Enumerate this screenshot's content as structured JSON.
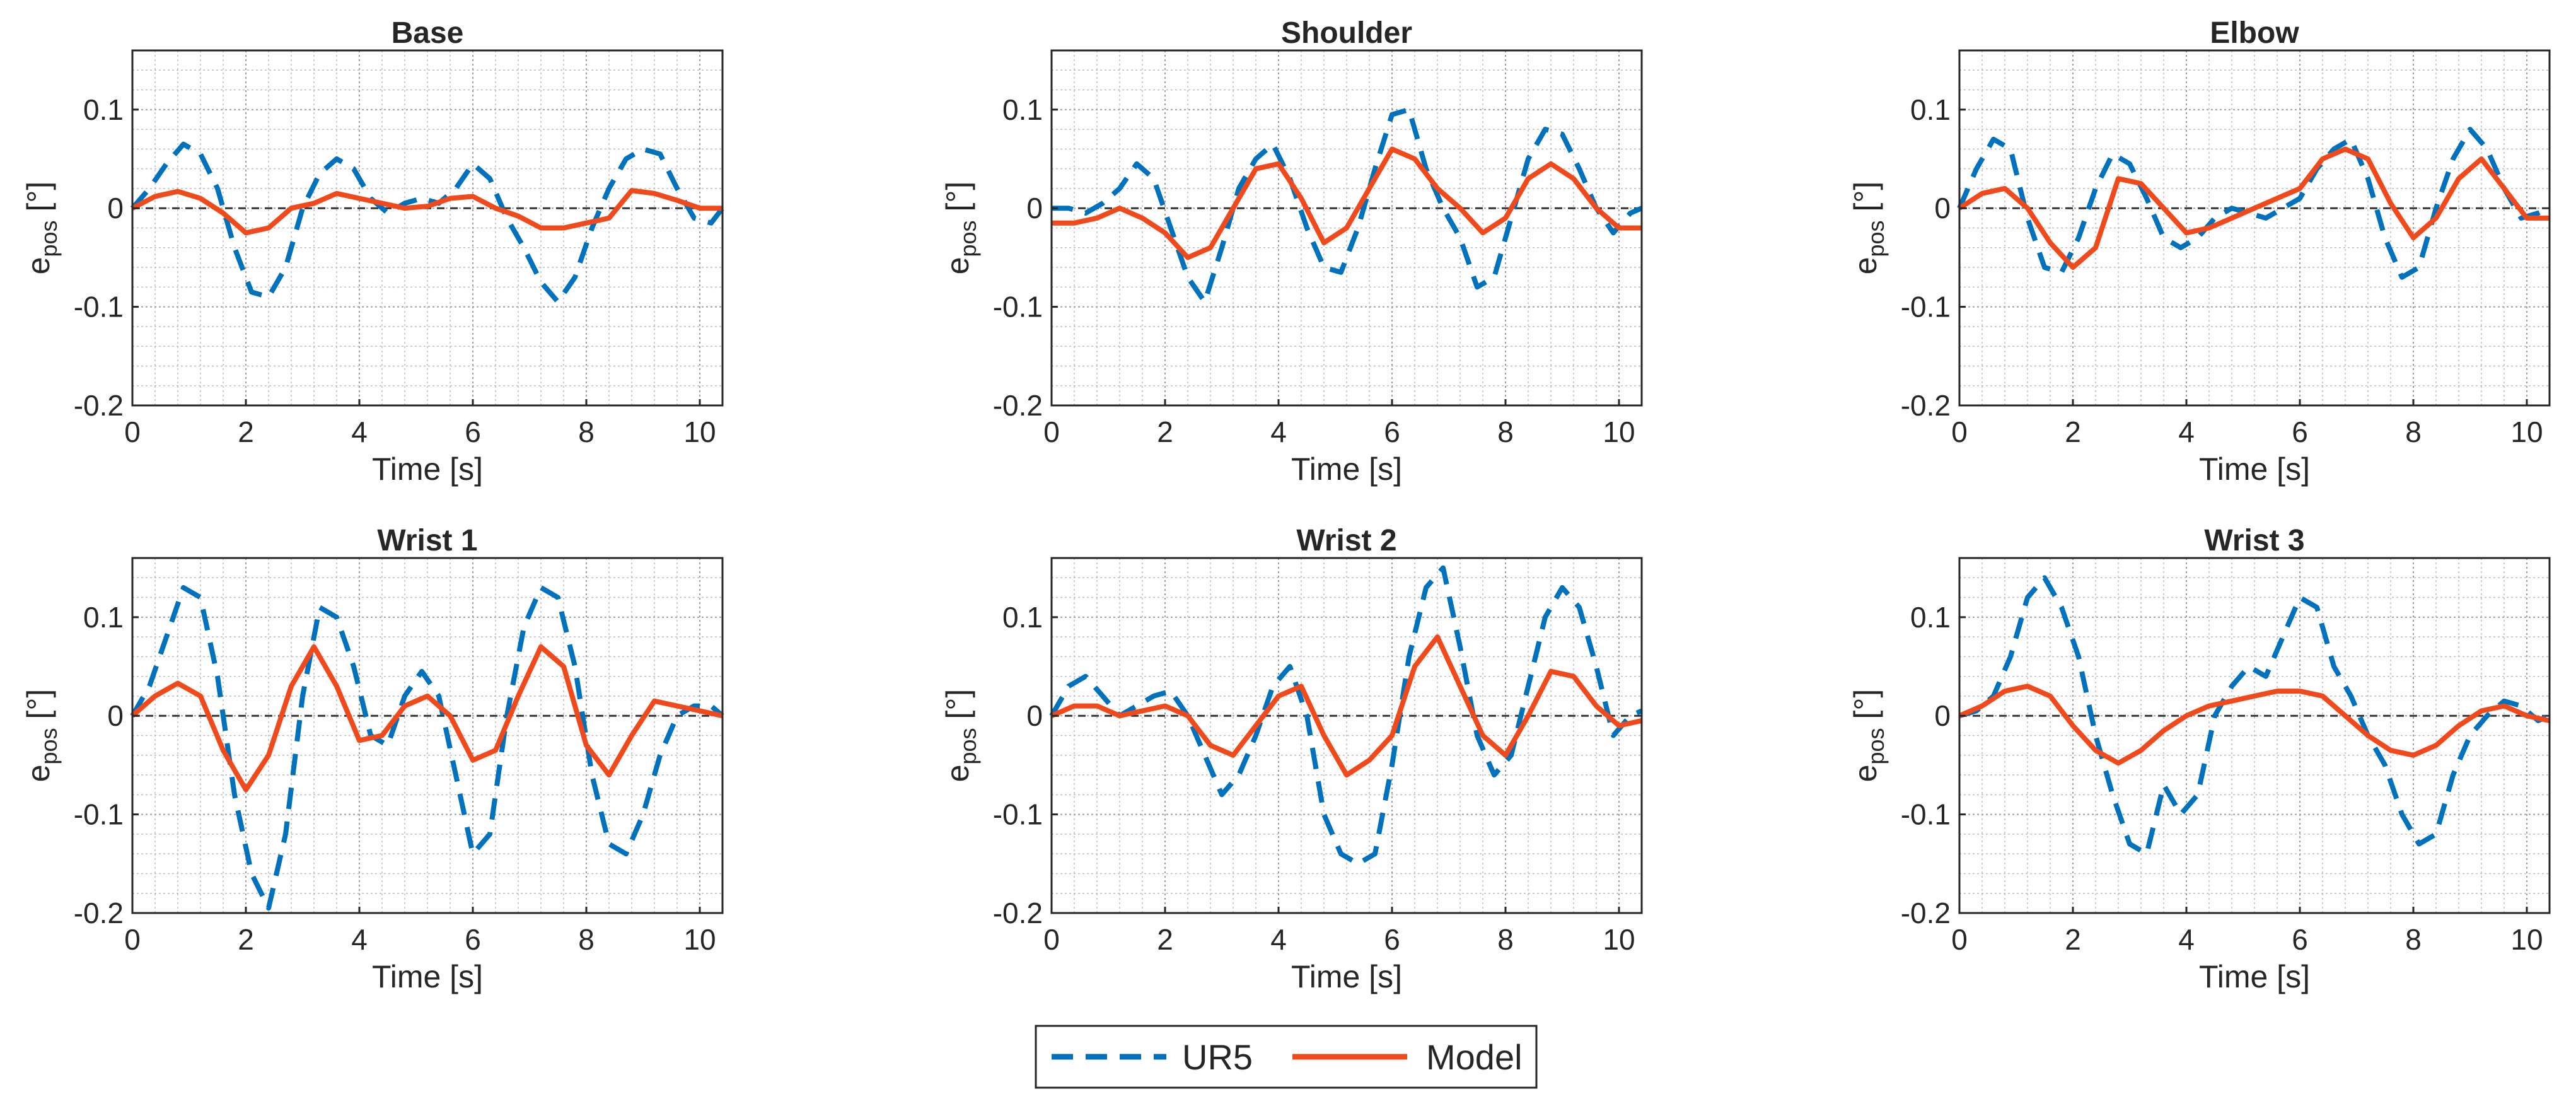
{
  "figure": {
    "legend_placement": "bottom-center",
    "legend": [
      {
        "name": "UR5",
        "style": "dashed",
        "color": "#0072BD"
      },
      {
        "name": "Model",
        "style": "solid",
        "color": "#F04A1C"
      }
    ],
    "y_axis_label_main": "e",
    "y_axis_label_sub": "pos",
    "y_axis_label_unit": "[°]"
  },
  "chart_data": [
    {
      "type": "line",
      "title": "Base",
      "xlabel": "Time [s]",
      "ylabel": "e_pos [°]",
      "xlim": [
        0,
        10.4
      ],
      "ylim": [
        -0.2,
        0.16
      ],
      "grid": true,
      "xticks": [
        "0",
        "2",
        "4",
        "6",
        "8",
        "10"
      ],
      "yticks": [
        "-0.2",
        "-0.1",
        "0",
        "0.1"
      ],
      "series": [
        {
          "name": "UR5",
          "x": [
            0,
            0.3,
            0.6,
            0.9,
            1.2,
            1.5,
            1.8,
            2.1,
            2.4,
            2.7,
            3.0,
            3.3,
            3.6,
            3.9,
            4.2,
            4.5,
            4.8,
            5.1,
            5.4,
            5.7,
            6.0,
            6.3,
            6.6,
            6.9,
            7.2,
            7.5,
            7.8,
            8.1,
            8.4,
            8.7,
            9.0,
            9.3,
            9.6,
            9.9,
            10.2,
            10.4
          ],
          "y": [
            0,
            0.02,
            0.045,
            0.065,
            0.055,
            0.02,
            -0.04,
            -0.085,
            -0.09,
            -0.06,
            0.0,
            0.035,
            0.05,
            0.04,
            0.01,
            -0.005,
            0.005,
            0.01,
            0.005,
            0.02,
            0.045,
            0.03,
            -0.01,
            -0.04,
            -0.075,
            -0.095,
            -0.07,
            -0.02,
            0.02,
            0.05,
            0.06,
            0.055,
            0.02,
            -0.01,
            -0.015,
            0.0
          ]
        },
        {
          "name": "Model",
          "x": [
            0,
            0.4,
            0.8,
            1.2,
            1.6,
            2.0,
            2.4,
            2.8,
            3.2,
            3.6,
            4.0,
            4.4,
            4.8,
            5.2,
            5.6,
            6.0,
            6.4,
            6.8,
            7.2,
            7.6,
            8.0,
            8.4,
            8.8,
            9.2,
            9.6,
            10.0,
            10.4
          ],
          "y": [
            0,
            0.012,
            0.017,
            0.01,
            -0.005,
            -0.025,
            -0.02,
            0.0,
            0.005,
            0.015,
            0.01,
            0.005,
            0.0,
            0.002,
            0.01,
            0.012,
            0.0,
            -0.008,
            -0.02,
            -0.02,
            -0.015,
            -0.01,
            0.018,
            0.015,
            0.008,
            0.0,
            0.0
          ]
        }
      ]
    },
    {
      "type": "line",
      "title": "Shoulder",
      "xlabel": "Time [s]",
      "ylabel": "e_pos [°]",
      "xlim": [
        0,
        10.4
      ],
      "ylim": [
        -0.2,
        0.16
      ],
      "grid": true,
      "xticks": [
        "0",
        "2",
        "4",
        "6",
        "8",
        "10"
      ],
      "yticks": [
        "-0.2",
        "-0.1",
        "0",
        "0.1"
      ],
      "series": [
        {
          "name": "UR5",
          "x": [
            0,
            0.3,
            0.6,
            0.9,
            1.2,
            1.5,
            1.8,
            2.1,
            2.4,
            2.7,
            3.0,
            3.3,
            3.6,
            3.9,
            4.2,
            4.5,
            4.8,
            5.1,
            5.4,
            5.7,
            6.0,
            6.3,
            6.6,
            6.9,
            7.2,
            7.5,
            7.8,
            8.1,
            8.4,
            8.7,
            9.0,
            9.3,
            9.6,
            9.9,
            10.2,
            10.4
          ],
          "y": [
            0,
            0.0,
            -0.005,
            0.005,
            0.02,
            0.045,
            0.03,
            -0.02,
            -0.07,
            -0.095,
            -0.04,
            0.02,
            0.05,
            0.065,
            0.03,
            -0.02,
            -0.06,
            -0.065,
            -0.02,
            0.04,
            0.095,
            0.1,
            0.04,
            0.0,
            -0.03,
            -0.08,
            -0.07,
            -0.01,
            0.05,
            0.08,
            0.075,
            0.04,
            0.0,
            -0.025,
            -0.005,
            0.0
          ]
        },
        {
          "name": "Model",
          "x": [
            0,
            0.4,
            0.8,
            1.2,
            1.6,
            2.0,
            2.4,
            2.8,
            3.2,
            3.6,
            4.0,
            4.4,
            4.8,
            5.2,
            5.6,
            6.0,
            6.4,
            6.8,
            7.2,
            7.6,
            8.0,
            8.4,
            8.8,
            9.2,
            9.6,
            10.0,
            10.4
          ],
          "y": [
            -0.015,
            -0.015,
            -0.01,
            0.0,
            -0.01,
            -0.025,
            -0.05,
            -0.04,
            0.0,
            0.04,
            0.045,
            0.01,
            -0.035,
            -0.02,
            0.02,
            0.06,
            0.05,
            0.02,
            0.0,
            -0.025,
            -0.01,
            0.03,
            0.045,
            0.03,
            0.0,
            -0.02,
            -0.02
          ]
        }
      ]
    },
    {
      "type": "line",
      "title": "Elbow",
      "xlabel": "Time [s]",
      "ylabel": "e_pos [°]",
      "xlim": [
        0,
        10.4
      ],
      "ylim": [
        -0.2,
        0.16
      ],
      "grid": true,
      "xticks": [
        "0",
        "2",
        "4",
        "6",
        "8",
        "10"
      ],
      "yticks": [
        "-0.2",
        "-0.1",
        "0",
        "0.1"
      ],
      "series": [
        {
          "name": "UR5",
          "x": [
            0,
            0.3,
            0.6,
            0.9,
            1.2,
            1.5,
            1.8,
            2.1,
            2.4,
            2.7,
            3.0,
            3.3,
            3.6,
            3.9,
            4.2,
            4.5,
            4.8,
            5.1,
            5.4,
            5.7,
            6.0,
            6.3,
            6.6,
            6.9,
            7.2,
            7.5,
            7.8,
            8.1,
            8.4,
            8.7,
            9.0,
            9.3,
            9.6,
            9.9,
            10.2,
            10.4
          ],
          "y": [
            0,
            0.04,
            0.07,
            0.06,
            -0.01,
            -0.06,
            -0.065,
            -0.03,
            0.02,
            0.055,
            0.045,
            0.01,
            -0.03,
            -0.04,
            -0.03,
            -0.01,
            0.0,
            -0.005,
            -0.01,
            0.0,
            0.01,
            0.04,
            0.06,
            0.07,
            0.03,
            -0.03,
            -0.07,
            -0.06,
            0.0,
            0.05,
            0.08,
            0.06,
            0.02,
            -0.01,
            -0.005,
            0.0
          ]
        },
        {
          "name": "Model",
          "x": [
            0,
            0.4,
            0.8,
            1.2,
            1.6,
            2.0,
            2.4,
            2.8,
            3.2,
            3.6,
            4.0,
            4.4,
            4.8,
            5.2,
            5.6,
            6.0,
            6.4,
            6.8,
            7.2,
            7.6,
            8.0,
            8.4,
            8.8,
            9.2,
            9.6,
            10.0,
            10.4
          ],
          "y": [
            0,
            0.015,
            0.02,
            0.0,
            -0.035,
            -0.06,
            -0.04,
            0.03,
            0.025,
            0.0,
            -0.025,
            -0.02,
            -0.01,
            0.0,
            0.01,
            0.02,
            0.05,
            0.06,
            0.05,
            0.005,
            -0.03,
            -0.01,
            0.03,
            0.05,
            0.02,
            -0.01,
            -0.01
          ]
        }
      ]
    },
    {
      "type": "line",
      "title": "Wrist 1",
      "xlabel": "Time [s]",
      "ylabel": "e_pos [°]",
      "xlim": [
        0,
        10.4
      ],
      "ylim": [
        -0.2,
        0.16
      ],
      "grid": true,
      "xticks": [
        "0",
        "2",
        "4",
        "6",
        "8",
        "10"
      ],
      "yticks": [
        "-0.2",
        "-0.1",
        "0",
        "0.1"
      ],
      "series": [
        {
          "name": "UR5",
          "x": [
            0,
            0.3,
            0.6,
            0.9,
            1.2,
            1.5,
            1.8,
            2.1,
            2.4,
            2.7,
            3.0,
            3.3,
            3.6,
            3.9,
            4.2,
            4.5,
            4.8,
            5.1,
            5.4,
            5.7,
            6.0,
            6.3,
            6.6,
            6.9,
            7.2,
            7.5,
            7.8,
            8.1,
            8.4,
            8.7,
            9.0,
            9.3,
            9.6,
            9.9,
            10.2,
            10.4
          ],
          "y": [
            0,
            0.03,
            0.08,
            0.13,
            0.12,
            0.04,
            -0.08,
            -0.16,
            -0.195,
            -0.12,
            0.02,
            0.11,
            0.1,
            0.05,
            -0.02,
            -0.03,
            0.02,
            0.045,
            0.02,
            -0.06,
            -0.14,
            -0.12,
            0.0,
            0.09,
            0.13,
            0.12,
            0.05,
            -0.06,
            -0.13,
            -0.14,
            -0.1,
            -0.04,
            0.0,
            0.01,
            0.01,
            0.0
          ]
        },
        {
          "name": "Model",
          "x": [
            0,
            0.4,
            0.8,
            1.2,
            1.6,
            2.0,
            2.4,
            2.8,
            3.2,
            3.6,
            4.0,
            4.4,
            4.8,
            5.2,
            5.6,
            6.0,
            6.4,
            6.8,
            7.2,
            7.6,
            8.0,
            8.4,
            8.8,
            9.2,
            9.6,
            10.0,
            10.4
          ],
          "y": [
            0,
            0.02,
            0.033,
            0.02,
            -0.035,
            -0.075,
            -0.04,
            0.03,
            0.07,
            0.03,
            -0.025,
            -0.02,
            0.01,
            0.02,
            0.0,
            -0.045,
            -0.035,
            0.02,
            0.07,
            0.05,
            -0.03,
            -0.06,
            -0.02,
            0.015,
            0.01,
            0.005,
            0.0
          ]
        }
      ]
    },
    {
      "type": "line",
      "title": "Wrist 2",
      "xlabel": "Time [s]",
      "ylabel": "e_pos [°]",
      "xlim": [
        0,
        10.4
      ],
      "ylim": [
        -0.2,
        0.16
      ],
      "grid": true,
      "xticks": [
        "0",
        "2",
        "4",
        "6",
        "8",
        "10"
      ],
      "yticks": [
        "-0.2",
        "-0.1",
        "0",
        "0.1"
      ],
      "series": [
        {
          "name": "UR5",
          "x": [
            0,
            0.3,
            0.6,
            0.9,
            1.2,
            1.5,
            1.8,
            2.1,
            2.4,
            2.7,
            3.0,
            3.3,
            3.6,
            3.9,
            4.2,
            4.5,
            4.8,
            5.1,
            5.4,
            5.7,
            6.0,
            6.3,
            6.6,
            6.9,
            7.2,
            7.5,
            7.8,
            8.1,
            8.4,
            8.7,
            9.0,
            9.3,
            9.6,
            9.9,
            10.2,
            10.4
          ],
          "y": [
            0,
            0.03,
            0.04,
            0.02,
            0.0,
            0.01,
            0.02,
            0.025,
            0.0,
            -0.04,
            -0.08,
            -0.06,
            -0.02,
            0.03,
            0.05,
            0.0,
            -0.1,
            -0.14,
            -0.15,
            -0.14,
            -0.05,
            0.06,
            0.13,
            0.15,
            0.07,
            -0.02,
            -0.06,
            -0.04,
            0.03,
            0.1,
            0.13,
            0.11,
            0.05,
            -0.02,
            0.0,
            0.005
          ]
        },
        {
          "name": "Model",
          "x": [
            0,
            0.4,
            0.8,
            1.2,
            1.6,
            2.0,
            2.4,
            2.8,
            3.2,
            3.6,
            4.0,
            4.4,
            4.8,
            5.2,
            5.6,
            6.0,
            6.4,
            6.8,
            7.2,
            7.6,
            8.0,
            8.4,
            8.8,
            9.2,
            9.6,
            10.0,
            10.4
          ],
          "y": [
            0,
            0.01,
            0.01,
            0.0,
            0.005,
            0.01,
            0.0,
            -0.03,
            -0.04,
            -0.01,
            0.02,
            0.03,
            -0.02,
            -0.06,
            -0.045,
            -0.02,
            0.05,
            0.08,
            0.03,
            -0.02,
            -0.04,
            0.0,
            0.045,
            0.04,
            0.01,
            -0.01,
            -0.005
          ]
        }
      ]
    },
    {
      "type": "line",
      "title": "Wrist 3",
      "xlabel": "Time [s]",
      "ylabel": "e_pos [°]",
      "xlim": [
        0,
        10.4
      ],
      "ylim": [
        -0.2,
        0.16
      ],
      "grid": true,
      "xticks": [
        "0",
        "2",
        "4",
        "6",
        "8",
        "10"
      ],
      "yticks": [
        "-0.2",
        "-0.1",
        "0",
        "0.1"
      ],
      "series": [
        {
          "name": "UR5",
          "x": [
            0,
            0.3,
            0.6,
            0.9,
            1.2,
            1.5,
            1.8,
            2.1,
            2.4,
            2.7,
            3.0,
            3.3,
            3.6,
            3.9,
            4.2,
            4.5,
            4.8,
            5.1,
            5.4,
            5.7,
            6.0,
            6.3,
            6.6,
            6.9,
            7.2,
            7.5,
            7.8,
            8.1,
            8.4,
            8.7,
            9.0,
            9.3,
            9.6,
            9.9,
            10.2,
            10.4
          ],
          "y": [
            0,
            0.005,
            0.02,
            0.06,
            0.12,
            0.14,
            0.11,
            0.06,
            -0.02,
            -0.08,
            -0.13,
            -0.14,
            -0.07,
            -0.1,
            -0.08,
            0.0,
            0.03,
            0.05,
            0.04,
            0.08,
            0.12,
            0.11,
            0.05,
            0.02,
            -0.02,
            -0.05,
            -0.1,
            -0.13,
            -0.12,
            -0.06,
            -0.02,
            0.0,
            0.015,
            0.01,
            -0.005,
            0.0
          ]
        },
        {
          "name": "Model",
          "x": [
            0,
            0.4,
            0.8,
            1.2,
            1.6,
            2.0,
            2.4,
            2.8,
            3.2,
            3.6,
            4.0,
            4.4,
            4.8,
            5.2,
            5.6,
            6.0,
            6.4,
            6.8,
            7.2,
            7.6,
            8.0,
            8.4,
            8.8,
            9.2,
            9.6,
            10.0,
            10.4
          ],
          "y": [
            0,
            0.01,
            0.025,
            0.03,
            0.02,
            -0.01,
            -0.035,
            -0.048,
            -0.035,
            -0.015,
            0.0,
            0.01,
            0.015,
            0.02,
            0.025,
            0.025,
            0.02,
            0.0,
            -0.02,
            -0.035,
            -0.04,
            -0.03,
            -0.01,
            0.005,
            0.01,
            0.0,
            -0.005
          ]
        }
      ]
    }
  ]
}
